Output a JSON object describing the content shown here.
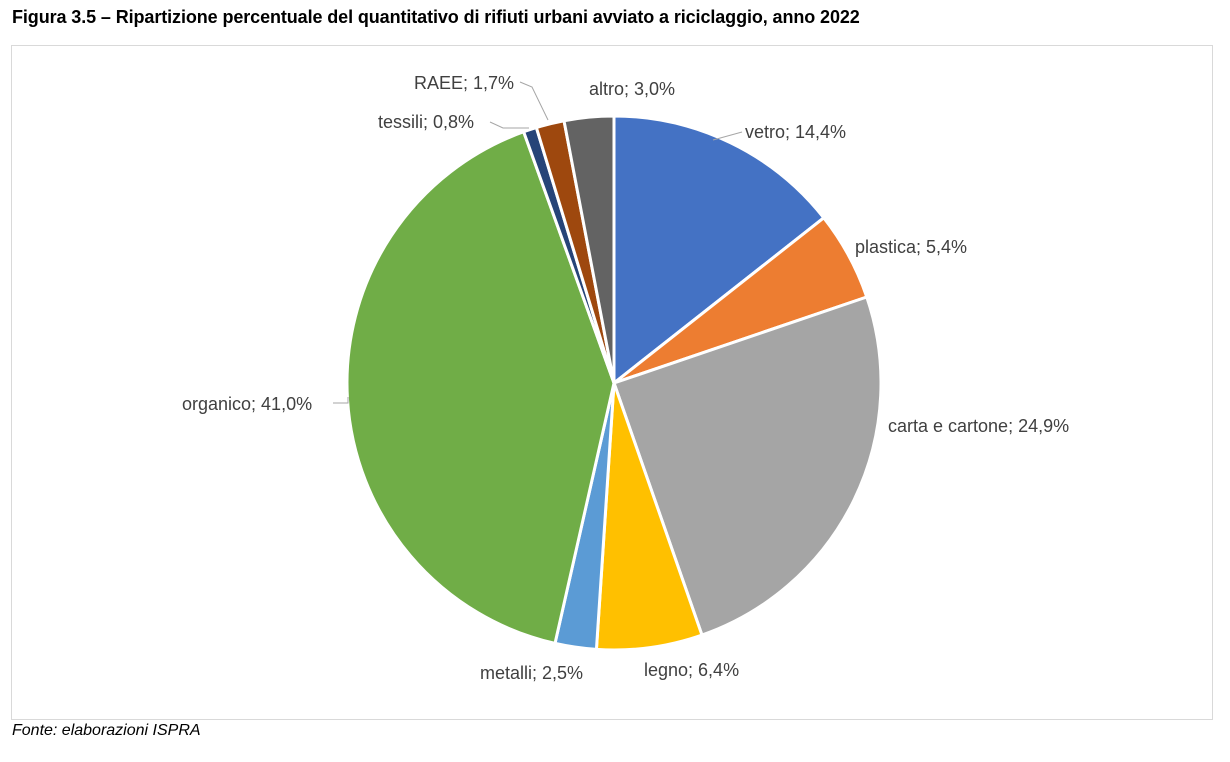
{
  "title": "Figura 3.5 – Ripartizione percentuale del quantitativo di rifiuti urbani avviato a riciclaggio, anno 2022",
  "source": "Fonte: elaborazioni ISPRA",
  "chart_data": {
    "type": "pie",
    "title": "Figura 3.5 – Ripartizione percentuale del quantitativo di rifiuti urbani avviato a riciclaggio, anno 2022",
    "start_angle_deg": 0,
    "direction": "clockwise",
    "slices": [
      {
        "name": "vetro",
        "value": 14.4,
        "label": "vetro; 14,4%",
        "color": "#4472C4"
      },
      {
        "name": "plastica",
        "value": 5.4,
        "label": "plastica; 5,4%",
        "color": "#ED7D31"
      },
      {
        "name": "carta e cartone",
        "value": 24.9,
        "label": "carta e cartone; 24,9%",
        "color": "#A5A5A5"
      },
      {
        "name": "legno",
        "value": 6.4,
        "label": "legno; 6,4%",
        "color": "#FFC000"
      },
      {
        "name": "metalli",
        "value": 2.5,
        "label": "metalli; 2,5%",
        "color": "#5B9BD5"
      },
      {
        "name": "organico",
        "value": 41.0,
        "label": "organico; 41,0%",
        "color": "#70AD47"
      },
      {
        "name": "tessili",
        "value": 0.8,
        "label": "tessili; 0,8%",
        "color": "#264478"
      },
      {
        "name": "RAEE",
        "value": 1.7,
        "label": "RAEE; 1,7%",
        "color": "#9E480E"
      },
      {
        "name": "altro",
        "value": 3.0,
        "label": "altro; 3,0%",
        "color": "#636363"
      }
    ]
  }
}
